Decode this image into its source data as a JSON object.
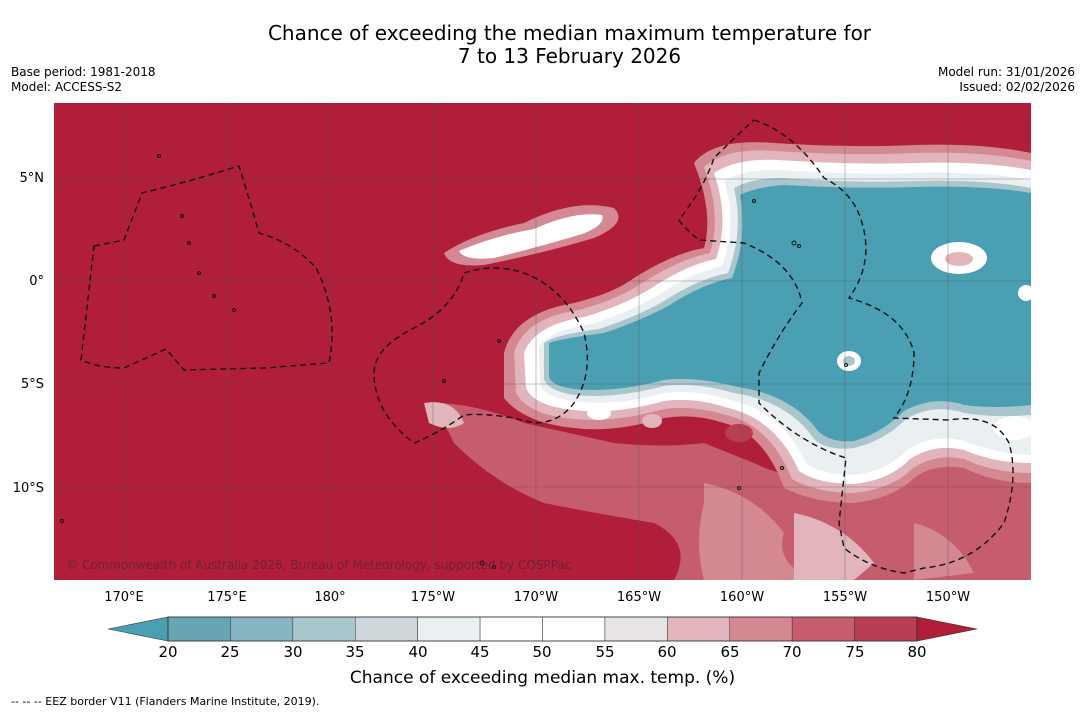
{
  "title": {
    "line1": "Chance of exceeding the median maximum temperature for",
    "line2": "7 to 13 February 2026"
  },
  "meta": {
    "base_period": "Base period: 1981-2018",
    "model": "Model: ACCESS-S2",
    "model_run": "Model run: 31/01/2026",
    "issued": "Issued: 02/02/2026"
  },
  "map": {
    "lat_labels": [
      "5°N",
      "0°",
      "5°S",
      "10°S"
    ],
    "lon_labels": [
      "170°E",
      "175°E",
      "180°",
      "175°W",
      "170°W",
      "165°W",
      "160°W",
      "155°W",
      "150°W"
    ],
    "copyright": "© Commonwealth of Australia 2026, Bureau of Meteorology, supported by COSPPac",
    "background_color": "#b01e3a",
    "anomaly_color": "#4a9fb2"
  },
  "colorbar": {
    "ticks": [
      "20",
      "25",
      "30",
      "35",
      "40",
      "45",
      "50",
      "55",
      "60",
      "65",
      "70",
      "75",
      "80"
    ],
    "colors": [
      "#68a5b3",
      "#87b5c2",
      "#a8c6cc",
      "#ced8db",
      "#eaeff2",
      "#ffffff",
      "#ffffff",
      "#e8e4e6",
      "#e2b5bd",
      "#d48892",
      "#c65d6e",
      "#b83e53"
    ],
    "low_extend_color": "#4a9fb2",
    "high_extend_color": "#b01e3a",
    "label": "Chance of exceeding median max. temp. (%)"
  },
  "footnote": "--  --  -- EEZ border V11 (Flanders Marine Institute, 2019)."
}
